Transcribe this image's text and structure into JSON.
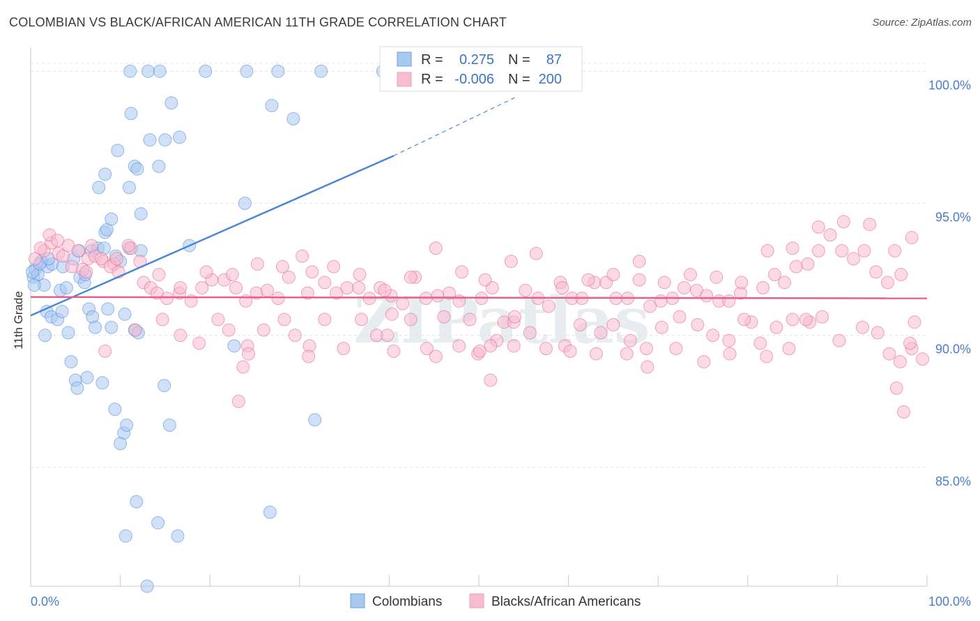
{
  "title": "COLOMBIAN VS BLACK/AFRICAN AMERICAN 11TH GRADE CORRELATION CHART",
  "source": "Source: ZipAtlas.com",
  "watermark": "ZIPatlas",
  "legend_top": [
    {
      "r_label": "R =",
      "r_value": "0.275",
      "n_label": "N =",
      "n_value": "87",
      "color": "#a9c8f0"
    },
    {
      "r_label": "R =",
      "r_value": "-0.006",
      "n_label": "N =",
      "n_value": "200",
      "color": "#f7bcd0"
    }
  ],
  "legend_bottom": [
    {
      "label": "Colombians",
      "color": "#a9c8f0"
    },
    {
      "label": "Blacks/African Americans",
      "color": "#f7bcd0"
    }
  ],
  "chart_data": {
    "type": "scatter",
    "xlabel": "",
    "ylabel": "11th Grade",
    "xlim": [
      0,
      100
    ],
    "ylim": [
      80.5,
      100.8
    ],
    "x_tick_labels": [
      "0.0%",
      "100.0%"
    ],
    "y_ticks": [
      85,
      90,
      95,
      100
    ],
    "y_tick_labels": [
      "85.0%",
      "90.0%",
      "95.0%",
      "100.0%"
    ],
    "grid": true,
    "series": [
      {
        "name": "Colombians",
        "color": "#4a86d8",
        "fill": "#a9c8f0",
        "trend": {
          "x": [
            0,
            40.5
          ],
          "y": [
            90.75,
            96.8
          ],
          "extend_to": [
            54,
            99.0
          ]
        },
        "points": [
          [
            0.3,
            92.2
          ],
          [
            0.5,
            92.5
          ],
          [
            0.8,
            92.3
          ],
          [
            1.2,
            92.8
          ],
          [
            1.5,
            91.9
          ],
          [
            1.9,
            92.6
          ],
          [
            2.4,
            92.7
          ],
          [
            3.3,
            91.7
          ],
          [
            4.0,
            91.8
          ],
          [
            4.8,
            92.9
          ],
          [
            5.5,
            92.2
          ],
          [
            6.0,
            92.0
          ],
          [
            6.8,
            93.2
          ],
          [
            7.5,
            93.3
          ],
          [
            8.2,
            93.3
          ],
          [
            9.5,
            93.0
          ],
          [
            10.0,
            92.8
          ],
          [
            11.0,
            93.3
          ],
          [
            1.6,
            90.0
          ],
          [
            1.8,
            90.9
          ],
          [
            2.3,
            90.7
          ],
          [
            3.0,
            90.6
          ],
          [
            3.5,
            90.9
          ],
          [
            4.2,
            90.1
          ],
          [
            4.5,
            89.0
          ],
          [
            5.0,
            88.3
          ],
          [
            5.2,
            88.0
          ],
          [
            6.5,
            91.0
          ],
          [
            6.9,
            90.7
          ],
          [
            7.2,
            90.3
          ],
          [
            8.6,
            91.0
          ],
          [
            9.0,
            90.3
          ],
          [
            10.5,
            90.8
          ],
          [
            11.6,
            90.2
          ],
          [
            12.0,
            90.1
          ],
          [
            6.3,
            88.4
          ],
          [
            8.0,
            88.2
          ],
          [
            9.4,
            87.2
          ],
          [
            10.4,
            86.3
          ],
          [
            10.7,
            86.6
          ],
          [
            10.0,
            85.9
          ],
          [
            15.5,
            86.6
          ],
          [
            14.9,
            88.1
          ],
          [
            11.8,
            83.7
          ],
          [
            14.2,
            82.9
          ],
          [
            16.4,
            82.4
          ],
          [
            10.6,
            82.4
          ],
          [
            13.0,
            80.5
          ],
          [
            8.3,
            93.9
          ],
          [
            8.5,
            94.0
          ],
          [
            9.0,
            94.4
          ],
          [
            12.3,
            94.6
          ],
          [
            11.0,
            95.6
          ],
          [
            7.6,
            95.6
          ],
          [
            8.3,
            96.1
          ],
          [
            11.6,
            96.4
          ],
          [
            11.9,
            96.3
          ],
          [
            14.3,
            96.4
          ],
          [
            9.7,
            97.0
          ],
          [
            13.3,
            97.4
          ],
          [
            15.0,
            97.4
          ],
          [
            16.6,
            97.5
          ],
          [
            11.2,
            98.4
          ],
          [
            15.7,
            98.8
          ],
          [
            26.9,
            98.7
          ],
          [
            29.3,
            98.2
          ],
          [
            11.1,
            100.0
          ],
          [
            13.1,
            100.0
          ],
          [
            14.4,
            100.0
          ],
          [
            19.5,
            100.0
          ],
          [
            24.1,
            100.0
          ],
          [
            27.6,
            100.0
          ],
          [
            32.4,
            100.0
          ],
          [
            39.3,
            100.0
          ],
          [
            0.2,
            92.4
          ],
          [
            1.0,
            92.7
          ],
          [
            2.0,
            92.9
          ],
          [
            3.6,
            92.6
          ],
          [
            5.4,
            93.2
          ],
          [
            23.9,
            95.0
          ],
          [
            17.7,
            93.4
          ],
          [
            12.3,
            93.2
          ],
          [
            22.7,
            89.6
          ],
          [
            31.7,
            86.8
          ],
          [
            26.7,
            83.3
          ],
          [
            0.4,
            91.9
          ],
          [
            6.1,
            92.3
          ]
        ]
      },
      {
        "name": "Blacks/African Americans",
        "color": "#e65f8a",
        "fill": "#f7bcd0",
        "trend": {
          "x": [
            0,
            100
          ],
          "y": [
            91.45,
            91.4
          ]
        },
        "points": [
          [
            0.5,
            92.9
          ],
          [
            1.5,
            93.2
          ],
          [
            2.3,
            93.5
          ],
          [
            3.1,
            93.1
          ],
          [
            4.2,
            93.4
          ],
          [
            5.3,
            93.2
          ],
          [
            6.4,
            92.9
          ],
          [
            7.2,
            93.0
          ],
          [
            8.1,
            92.8
          ],
          [
            9.3,
            92.7
          ],
          [
            1.1,
            93.3
          ],
          [
            2.1,
            93.8
          ],
          [
            3.6,
            93.0
          ],
          [
            4.6,
            92.6
          ],
          [
            5.8,
            92.5
          ],
          [
            6.8,
            93.4
          ],
          [
            7.9,
            92.9
          ],
          [
            8.9,
            92.6
          ],
          [
            9.8,
            92.4
          ],
          [
            11.2,
            93.3
          ],
          [
            12.6,
            92.0
          ],
          [
            13.4,
            91.8
          ],
          [
            14.3,
            92.3
          ],
          [
            15.2,
            91.4
          ],
          [
            16.6,
            91.6
          ],
          [
            17.9,
            91.3
          ],
          [
            19.1,
            91.8
          ],
          [
            20.2,
            92.1
          ],
          [
            21.6,
            92.1
          ],
          [
            22.9,
            91.8
          ],
          [
            24.0,
            91.3
          ],
          [
            25.2,
            91.6
          ],
          [
            26.4,
            91.7
          ],
          [
            27.6,
            91.4
          ],
          [
            28.8,
            92.2
          ],
          [
            30.3,
            93.0
          ],
          [
            31.4,
            92.4
          ],
          [
            32.8,
            92.0
          ],
          [
            34.1,
            91.6
          ],
          [
            35.3,
            91.8
          ],
          [
            36.6,
            91.8
          ],
          [
            37.8,
            91.4
          ],
          [
            39.0,
            91.8
          ],
          [
            40.2,
            91.5
          ],
          [
            41.5,
            91.2
          ],
          [
            42.9,
            92.2
          ],
          [
            44.1,
            91.4
          ],
          [
            45.4,
            91.5
          ],
          [
            46.7,
            91.6
          ],
          [
            47.8,
            91.3
          ],
          [
            49.0,
            90.6
          ],
          [
            50.3,
            91.4
          ],
          [
            51.5,
            91.8
          ],
          [
            52.8,
            90.5
          ],
          [
            53.9,
            90.5
          ],
          [
            55.2,
            91.7
          ],
          [
            56.6,
            91.4
          ],
          [
            57.8,
            91.1
          ],
          [
            59.1,
            92.0
          ],
          [
            60.4,
            91.4
          ],
          [
            61.5,
            91.4
          ],
          [
            62.9,
            92.0
          ],
          [
            64.2,
            92.0
          ],
          [
            65.3,
            91.4
          ],
          [
            66.6,
            91.4
          ],
          [
            67.9,
            92.1
          ],
          [
            69.1,
            91.1
          ],
          [
            70.3,
            91.3
          ],
          [
            71.6,
            91.4
          ],
          [
            72.9,
            91.8
          ],
          [
            74.3,
            91.7
          ],
          [
            75.4,
            91.5
          ],
          [
            76.8,
            91.3
          ],
          [
            77.9,
            91.3
          ],
          [
            79.2,
            91.6
          ],
          [
            80.4,
            90.5
          ],
          [
            81.7,
            91.8
          ],
          [
            83.0,
            92.3
          ],
          [
            84.1,
            92.0
          ],
          [
            85.4,
            92.6
          ],
          [
            86.7,
            92.7
          ],
          [
            87.9,
            93.2
          ],
          [
            89.2,
            93.8
          ],
          [
            90.5,
            93.2
          ],
          [
            91.8,
            92.9
          ],
          [
            93.0,
            93.2
          ],
          [
            94.3,
            92.4
          ],
          [
            95.6,
            92.0
          ],
          [
            97.1,
            92.3
          ],
          [
            98.3,
            93.7
          ],
          [
            14.7,
            90.6
          ],
          [
            16.7,
            90.0
          ],
          [
            18.8,
            89.7
          ],
          [
            20.9,
            90.6
          ],
          [
            22.1,
            90.2
          ],
          [
            24.2,
            89.6
          ],
          [
            26.0,
            90.2
          ],
          [
            28.3,
            90.6
          ],
          [
            29.5,
            90.0
          ],
          [
            31.1,
            89.6
          ],
          [
            32.8,
            90.6
          ],
          [
            34.9,
            89.5
          ],
          [
            36.9,
            90.6
          ],
          [
            38.6,
            90.0
          ],
          [
            40.5,
            89.4
          ],
          [
            42.4,
            90.6
          ],
          [
            44.2,
            89.5
          ],
          [
            46.1,
            90.7
          ],
          [
            47.8,
            89.6
          ],
          [
            49.9,
            89.3
          ],
          [
            52.0,
            89.8
          ],
          [
            53.9,
            89.6
          ],
          [
            55.7,
            90.1
          ],
          [
            57.5,
            89.5
          ],
          [
            59.6,
            89.6
          ],
          [
            61.3,
            90.4
          ],
          [
            63.1,
            89.3
          ],
          [
            65.0,
            90.4
          ],
          [
            66.9,
            89.8
          ],
          [
            68.7,
            89.5
          ],
          [
            70.4,
            90.3
          ],
          [
            72.4,
            90.7
          ],
          [
            74.4,
            90.4
          ],
          [
            76.1,
            90.0
          ],
          [
            77.9,
            89.8
          ],
          [
            79.6,
            90.6
          ],
          [
            81.4,
            89.7
          ],
          [
            83.2,
            90.3
          ],
          [
            85.0,
            90.6
          ],
          [
            86.9,
            90.5
          ],
          [
            6.2,
            92.4
          ],
          [
            9.6,
            92.9
          ],
          [
            10.9,
            93.4
          ],
          [
            12.2,
            92.8
          ],
          [
            14.1,
            91.6
          ],
          [
            16.7,
            91.8
          ],
          [
            19.6,
            92.4
          ],
          [
            22.5,
            92.3
          ],
          [
            25.3,
            92.7
          ],
          [
            28.1,
            92.6
          ],
          [
            30.9,
            91.6
          ],
          [
            33.8,
            92.6
          ],
          [
            36.7,
            92.3
          ],
          [
            39.5,
            91.7
          ],
          [
            42.4,
            92.2
          ],
          [
            45.2,
            93.3
          ],
          [
            48.1,
            92.4
          ],
          [
            50.7,
            92.1
          ],
          [
            53.6,
            92.8
          ],
          [
            56.4,
            93.1
          ],
          [
            59.3,
            91.8
          ],
          [
            62.2,
            92.1
          ],
          [
            65.0,
            92.3
          ],
          [
            67.9,
            92.8
          ],
          [
            70.7,
            92.0
          ],
          [
            73.6,
            92.3
          ],
          [
            76.5,
            92.2
          ],
          [
            79.3,
            92.0
          ],
          [
            82.2,
            93.2
          ],
          [
            85.0,
            93.3
          ],
          [
            87.9,
            94.1
          ],
          [
            90.7,
            94.3
          ],
          [
            93.6,
            94.2
          ],
          [
            96.4,
            93.2
          ],
          [
            98.6,
            90.5
          ],
          [
            96.6,
            88.0
          ],
          [
            97.4,
            87.1
          ],
          [
            98.3,
            89.5
          ],
          [
            98.1,
            89.7
          ],
          [
            99.5,
            89.1
          ],
          [
            40.3,
            90.8
          ],
          [
            45.2,
            89.2
          ],
          [
            51.3,
            89.6
          ],
          [
            54.0,
            90.7
          ],
          [
            60.2,
            89.4
          ],
          [
            63.6,
            90.1
          ],
          [
            66.5,
            89.3
          ],
          [
            68.8,
            88.8
          ],
          [
            72.0,
            89.5
          ],
          [
            75.1,
            89.0
          ],
          [
            78.0,
            89.3
          ],
          [
            82.1,
            89.2
          ],
          [
            84.6,
            89.5
          ],
          [
            86.5,
            90.6
          ],
          [
            88.3,
            90.7
          ],
          [
            90.2,
            89.8
          ],
          [
            92.8,
            90.3
          ],
          [
            94.5,
            90.1
          ],
          [
            95.8,
            89.3
          ],
          [
            97.0,
            89.0
          ],
          [
            3.0,
            93.6
          ],
          [
            8.3,
            89.4
          ],
          [
            11.7,
            90.2
          ],
          [
            23.2,
            87.5
          ],
          [
            23.7,
            88.8
          ],
          [
            24.3,
            89.3
          ],
          [
            31.0,
            89.2
          ],
          [
            39.8,
            90.0
          ],
          [
            50.1,
            89.4
          ],
          [
            51.3,
            88.3
          ]
        ]
      }
    ]
  }
}
